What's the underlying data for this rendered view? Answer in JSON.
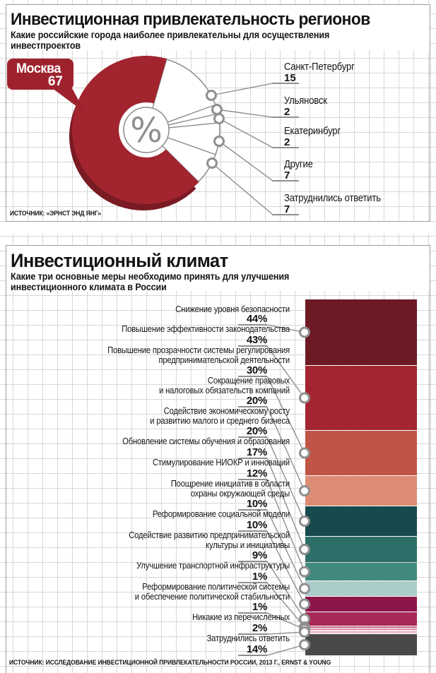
{
  "page": {
    "panel1": {
      "title": "Инвестиционная привлекательность регионов",
      "subtitle": "Какие российские города наиболее привлекательны для осуществления инвестпроектов",
      "source": "ИСТОЧНИК: «ЭРНСТ ЭНД ЯНГ»",
      "center_symbol": "%"
    },
    "panel2": {
      "title": "Инвестиционный климат",
      "subtitle": "Какие три основные меры необходимо принять для улучшения\nинвестиционного климата в России",
      "source": "ИСТОЧНИК: ИССЛЕДОВАНИЕ ИНВЕСТИЦИОННОЙ ПРИВЛЕКАТЕЛЬНОСТИ РОССИИ, 2013 Г., ERNST & YOUNG"
    }
  },
  "chart_data": [
    {
      "type": "pie",
      "title": "Инвестиционная привлекательность регионов",
      "subtitle": "Какие российские города наиболее привлекательны для осуществления инвестпроектов",
      "source": "ИСТОЧНИК: «ЭРНСТ ЭНД ЯНГ»",
      "unit": "%",
      "donut": true,
      "center_symbol": "%",
      "segments": [
        {
          "label": "Москва",
          "value": 67,
          "color": "#a1242f",
          "callout": true
        },
        {
          "label": "Санкт-Петербург",
          "value": 15,
          "color": "#ffffff"
        },
        {
          "label": "Ульяновск",
          "value": 2,
          "color": "#ffffff"
        },
        {
          "label": "Екатеринбург",
          "value": 2,
          "color": "#ffffff"
        },
        {
          "label": "Другие",
          "value": 7,
          "color": "#ffffff"
        },
        {
          "label": "Затруднились ответить",
          "value": 7,
          "color": "#ffffff"
        }
      ]
    },
    {
      "type": "bar",
      "stacked": true,
      "orientation": "vertical-stack",
      "title": "Инвестиционный климат",
      "subtitle": "Какие три основные меры необходимо принять для улучшения\nинвестиционного климата в России",
      "source": "ИСТОЧНИК: ИССЛЕДОВАНИЕ ИНВЕСТИЦИОННОЙ ПРИВЛЕКАТЕЛЬНОСТИ РОССИИ, 2013 Г., ERNST & YOUNG",
      "unit": "%",
      "items": [
        {
          "label": "Снижение уровня безопасности",
          "value": 44,
          "color": "#6e1a24"
        },
        {
          "label": "Повышение эффективности законодательства",
          "value": 43,
          "color": "#a22531"
        },
        {
          "label": "Повышение прозрачности системы регулирования\nпредпринимательской деятельности",
          "value": 30,
          "color": "#c05447"
        },
        {
          "label": "Сокращение правовых\nи налоговых обязательств компаний",
          "value": 20,
          "color": "#dc8d73"
        },
        {
          "label": "Содействие экономическому росту\nи развитию малого и среднего бизнеса",
          "value": 20,
          "color": "#174a4d"
        },
        {
          "label": "Обновление системы обучения и образования",
          "value": 17,
          "color": "#2d6e68"
        },
        {
          "label": "Стимулирование НИОКР и инноваций",
          "value": 12,
          "color": "#41897f"
        },
        {
          "label": "Поощрение инициатив в области\nохраны окружающей среды",
          "value": 10,
          "color": "#abccc9"
        },
        {
          "label": "Реформирование социальной модели",
          "value": 10,
          "color": "#8c154a"
        },
        {
          "label": "Содействие развитию предпринимательской\nкультуры и инициативы",
          "value": 9,
          "color": "#a62959"
        },
        {
          "label": "Улучшение транспортной инфраструктуры",
          "value": 1,
          "color": "#c9637f"
        },
        {
          "label": "Реформирование политической системы\nи обеспечение политической стабильности",
          "value": 1,
          "color": "#d98fa4"
        },
        {
          "label": "Никакие из перечисленных",
          "value": 2,
          "color": "#eec3cf"
        },
        {
          "label": "Затруднились ответить",
          "value": 14,
          "color": "#49494b"
        }
      ]
    }
  ]
}
